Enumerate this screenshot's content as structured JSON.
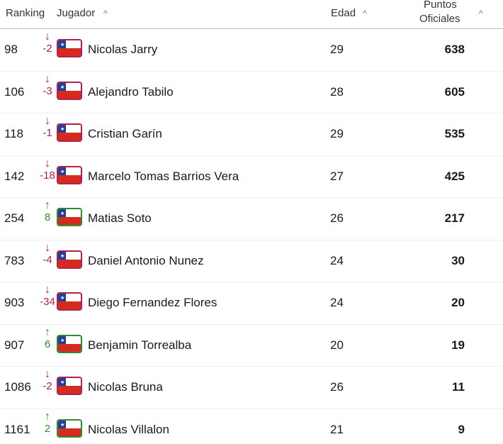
{
  "header": {
    "ranking": "Ranking",
    "jugador": "Jugador",
    "edad": "Edad",
    "puntos1": "Puntos",
    "puntos2": "Oficiales",
    "caret": "^"
  },
  "colors": {
    "up": "#2e8b2e",
    "down": "#b0224a",
    "accent": "#5b6bd6"
  },
  "rows": [
    {
      "rank": "98",
      "dir": "down",
      "change": "-2",
      "name": "Nicolas Jarry",
      "age": "29",
      "points": "638"
    },
    {
      "rank": "106",
      "dir": "down",
      "change": "-3",
      "name": "Alejandro Tabilo",
      "age": "28",
      "points": "605"
    },
    {
      "rank": "118",
      "dir": "down",
      "change": "-1",
      "name": "Cristian Garín",
      "age": "29",
      "points": "535"
    },
    {
      "rank": "142",
      "dir": "down",
      "change": "-18",
      "name": "Marcelo Tomas Barrios Vera",
      "age": "27",
      "points": "425"
    },
    {
      "rank": "254",
      "dir": "up",
      "change": "8",
      "name": "Matias Soto",
      "age": "26",
      "points": "217"
    },
    {
      "rank": "783",
      "dir": "down",
      "change": "-4",
      "name": "Daniel Antonio Nunez",
      "age": "24",
      "points": "30"
    },
    {
      "rank": "903",
      "dir": "down",
      "change": "-34",
      "name": "Diego Fernandez Flores",
      "age": "24",
      "points": "20"
    },
    {
      "rank": "907",
      "dir": "up",
      "change": "6",
      "name": "Benjamin Torrealba",
      "age": "20",
      "points": "19"
    },
    {
      "rank": "1086",
      "dir": "down",
      "change": "-2",
      "name": "Nicolas Bruna",
      "age": "26",
      "points": "11"
    },
    {
      "rank": "1161",
      "dir": "up",
      "change": "2",
      "name": "Nicolas Villalon",
      "age": "21",
      "points": "9"
    }
  ]
}
